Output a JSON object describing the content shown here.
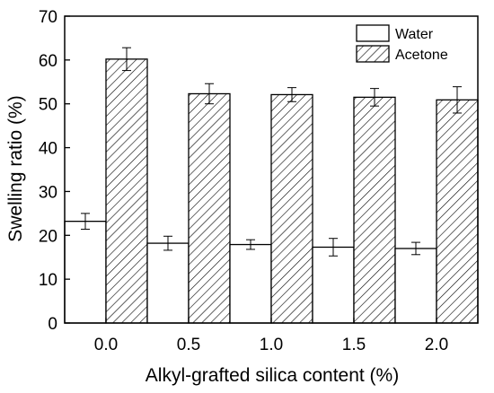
{
  "chart_data": {
    "type": "bar",
    "title": "",
    "xlabel": "Alkyl-grafted silica content (%)",
    "ylabel": "Swelling ratio (%)",
    "categories": [
      "0.0",
      "0.5",
      "1.0",
      "1.5",
      "2.0"
    ],
    "ylim": [
      0,
      70
    ],
    "yticks": [
      "0",
      "10",
      "20",
      "30",
      "40",
      "50",
      "60",
      "70"
    ],
    "grid": false,
    "legend_position": "top-right",
    "series": [
      {
        "name": "Water",
        "fill": "plain",
        "values": [
          23.2,
          18.2,
          17.9,
          17.3,
          17.0
        ],
        "errors": [
          1.8,
          1.6,
          1.1,
          2.0,
          1.4
        ]
      },
      {
        "name": "Acetone",
        "fill": "hatched",
        "values": [
          60.2,
          52.3,
          52.1,
          51.5,
          50.9
        ],
        "errors": [
          2.6,
          2.3,
          1.6,
          2.0,
          3.0
        ]
      }
    ],
    "colors": {
      "axis": "#000000",
      "bar_fill": "#ffffff",
      "hatch": "#000000"
    }
  }
}
